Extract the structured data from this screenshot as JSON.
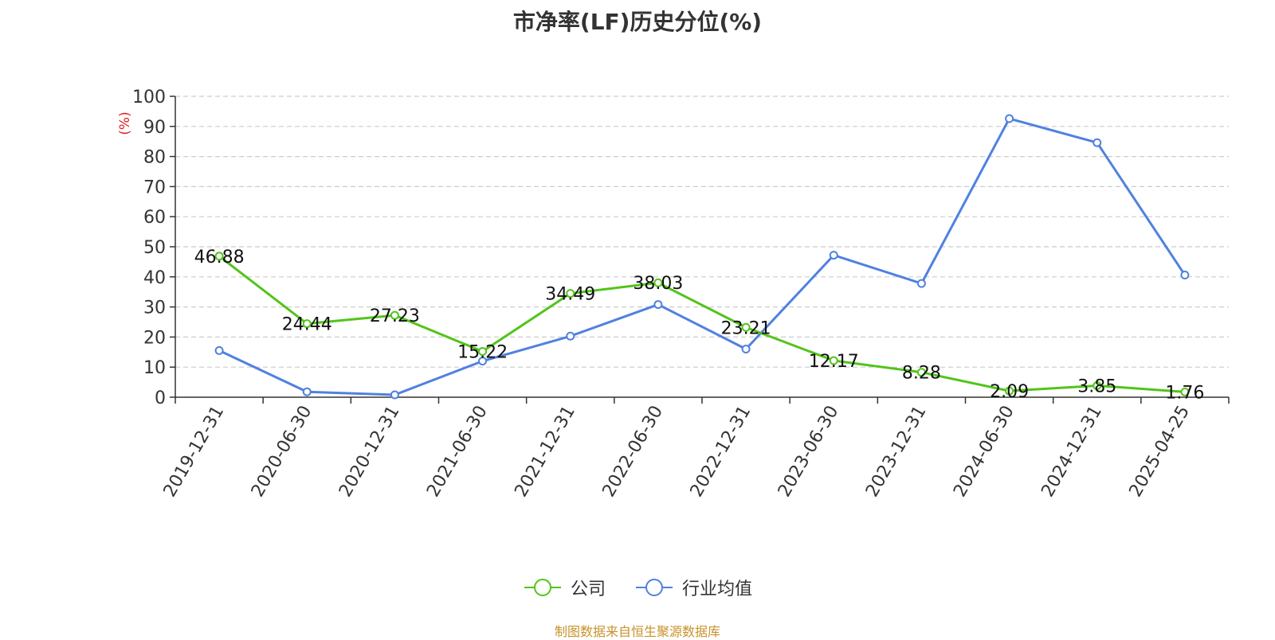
{
  "chart_data": {
    "type": "line",
    "title": "市净率(LF)历史分位(%)",
    "ylabel": "(%)",
    "xlabel": "",
    "ylim": [
      0,
      100
    ],
    "yticks": [
      0,
      10,
      20,
      30,
      40,
      50,
      60,
      70,
      80,
      90,
      100
    ],
    "categories": [
      "2019-12-31",
      "2020-06-30",
      "2020-12-31",
      "2021-06-30",
      "2021-12-31",
      "2022-06-30",
      "2022-12-31",
      "2023-06-30",
      "2023-12-31",
      "2024-06-30",
      "2024-12-31",
      "2025-04-25"
    ],
    "series": [
      {
        "name": "公司",
        "color": "#52c41a",
        "values": [
          46.88,
          24.44,
          27.23,
          15.22,
          34.49,
          38.03,
          23.21,
          12.17,
          8.28,
          2.09,
          3.85,
          1.76
        ],
        "labels": [
          "46.88",
          "24.44",
          "27.23",
          "15.22",
          "34.49",
          "38.03",
          "23.21",
          "12.17",
          "8.28",
          "2.09",
          "3.85",
          "1.76"
        ]
      },
      {
        "name": "行业均值",
        "color": "#4f81e0",
        "values": [
          15.5,
          1.8,
          0.8,
          12.0,
          20.3,
          30.8,
          16.0,
          47.2,
          37.8,
          92.6,
          84.6,
          40.6
        ]
      }
    ],
    "grid": true,
    "legend_position": "bottom-center",
    "source": "制图数据来自恒生聚源数据库",
    "source_color": "#c8922a",
    "ylabel_color": "#e02020"
  }
}
